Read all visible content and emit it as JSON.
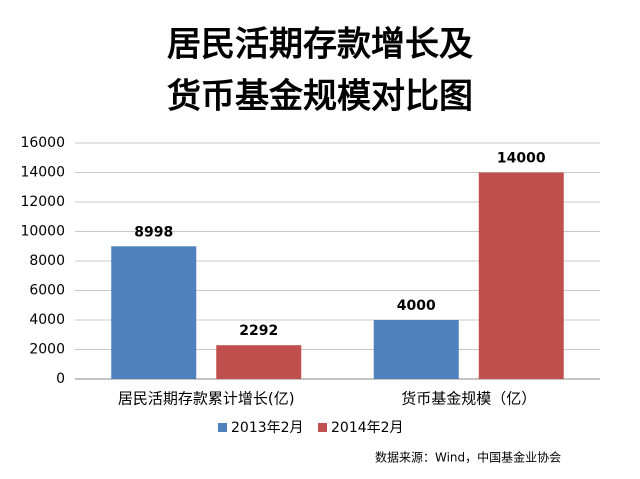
{
  "chart_data": {
    "type": "bar",
    "title": [
      "居民活期存款增长及",
      "货币基金规模对比图"
    ],
    "categories": [
      "居民活期存款累计增长(亿)",
      "货币基金规模（亿）"
    ],
    "series": [
      {
        "name": "2013年2月",
        "color": "#4f81bd",
        "values": [
          8998,
          4000
        ]
      },
      {
        "name": "2014年2月",
        "color": "#c0504d",
        "values": [
          2292,
          14000
        ]
      }
    ],
    "ylim": [
      0,
      16000
    ],
    "yticks": [
      0,
      2000,
      4000,
      6000,
      8000,
      10000,
      12000,
      14000,
      16000
    ],
    "grid": true,
    "legend": "bottom",
    "source": "数据来源：Wind，中国基金业协会"
  }
}
